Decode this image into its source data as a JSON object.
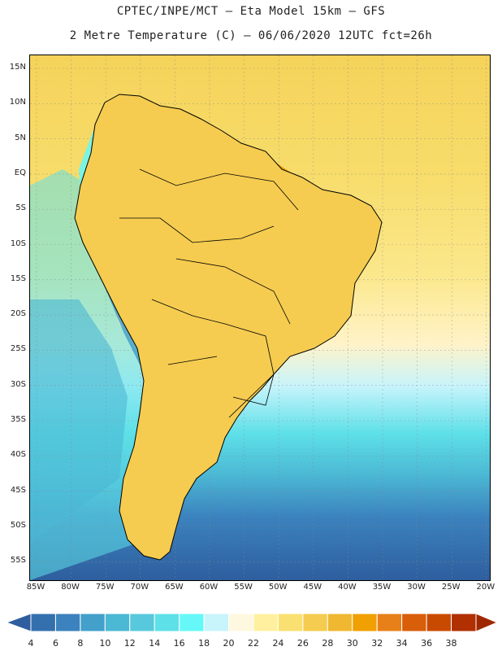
{
  "header": {
    "line1": "CPTEC/INPE/MCT –  Eta Model 15km – GFS",
    "line2": "2 Metre Temperature (C) – 06/06/2020 12UTC fct=26h"
  },
  "map": {
    "lat_labels": [
      "15N",
      "10N",
      "5N",
      "EQ",
      "5S",
      "10S",
      "15S",
      "20S",
      "25S",
      "30S",
      "35S",
      "40S",
      "45S",
      "50S",
      "55S"
    ],
    "lon_labels": [
      "85W",
      "80W",
      "75W",
      "70W",
      "65W",
      "60W",
      "55W",
      "50W",
      "45W",
      "40W",
      "35W",
      "30W",
      "25W",
      "20W"
    ]
  },
  "colorbar": {
    "labels": [
      "4",
      "6",
      "8",
      "10",
      "12",
      "14",
      "16",
      "18",
      "20",
      "22",
      "24",
      "26",
      "28",
      "30",
      "32",
      "34",
      "36",
      "38"
    ],
    "colors": [
      "#2e5e9e",
      "#3470ae",
      "#3b82be",
      "#42a0ca",
      "#4bb8d4",
      "#58c8dc",
      "#5ee0e8",
      "#66f8f8",
      "#c8f4fc",
      "#fff8e0",
      "#fff0a0",
      "#fae070",
      "#f5cc50",
      "#f0b830",
      "#f0a000",
      "#e8801a",
      "#d85e0a",
      "#c84a00",
      "#b03000",
      "#a02800"
    ]
  }
}
